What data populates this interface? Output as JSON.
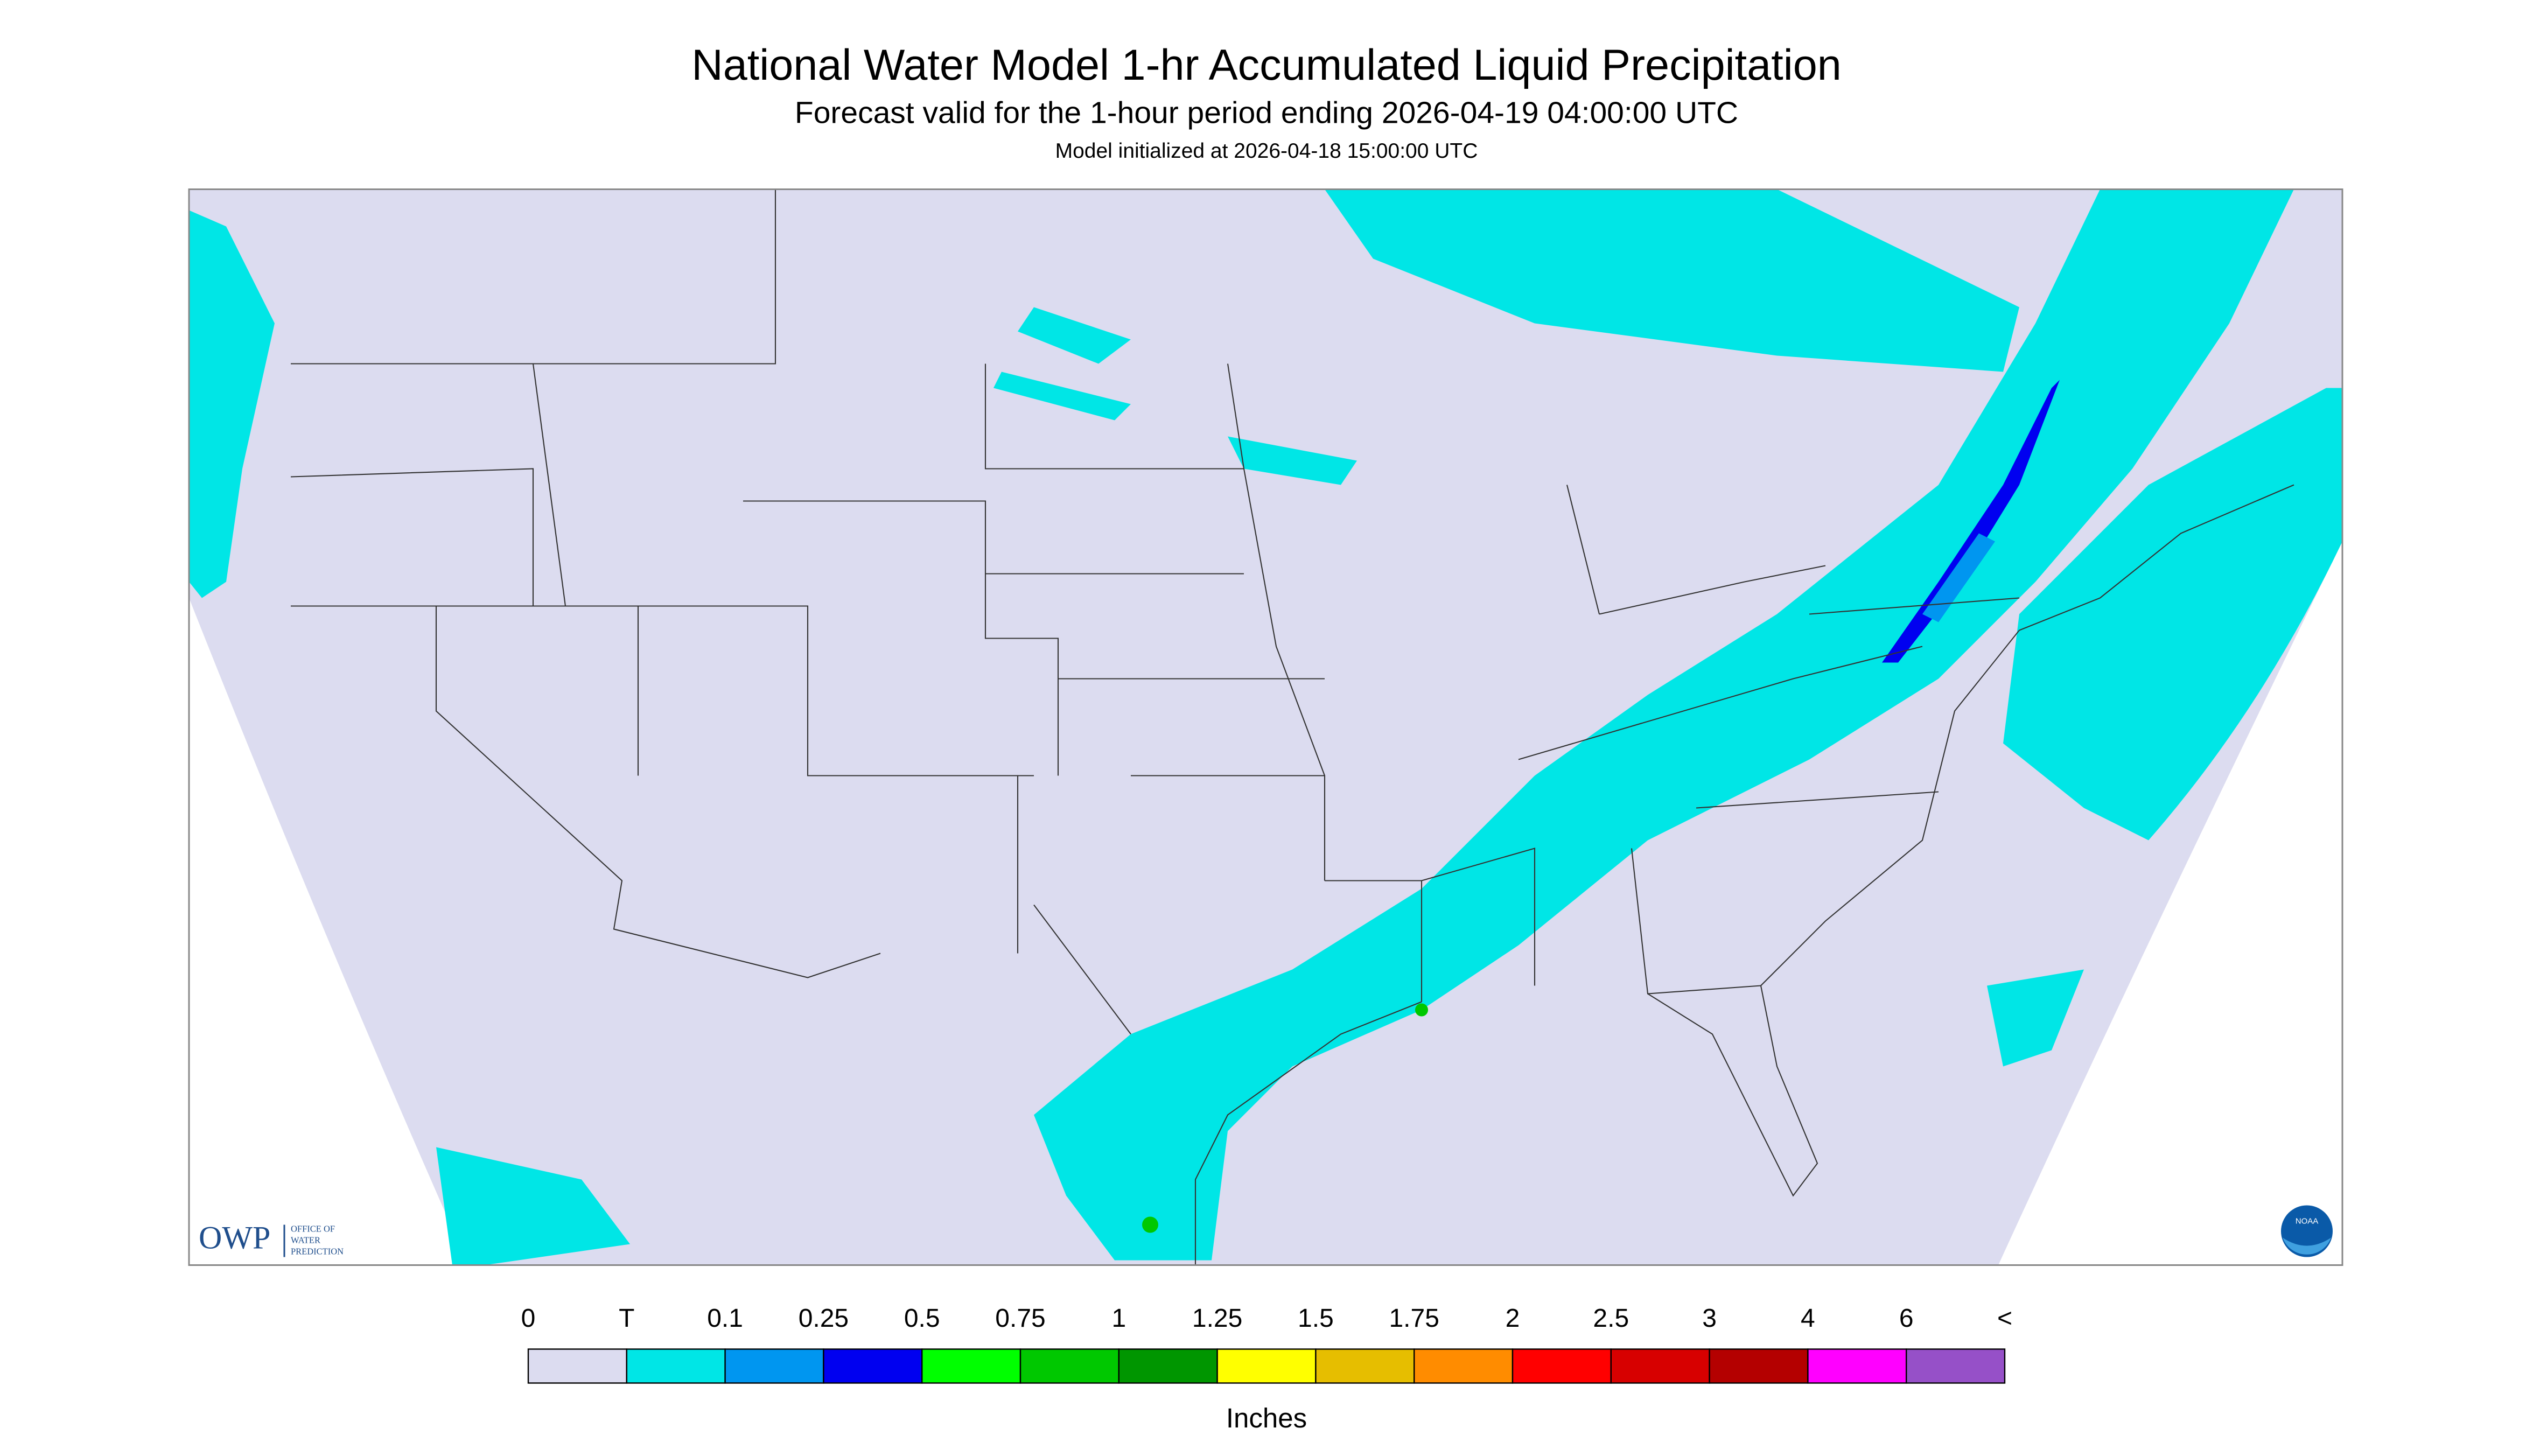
{
  "header": {
    "title": "National Water Model 1-hr Accumulated Liquid Precipitation",
    "subtitle": "Forecast valid for the 1-hour period ending 2026-04-19 04:00:00 UTC",
    "init": "Model initialized at 2026-04-18 15:00:00 UTC"
  },
  "logos": {
    "owp": "OWP",
    "owp_name": [
      "OFFICE OF",
      "WATER",
      "PREDICTION"
    ],
    "noaa": "NOAA"
  },
  "legend": {
    "labels": [
      "0",
      "T",
      "0.1",
      "0.25",
      "0.5",
      "0.75",
      "1",
      "1.25",
      "1.5",
      "1.75",
      "2",
      "2.5",
      "3",
      "4",
      "6",
      "<"
    ],
    "colors": [
      "#dcdcf0",
      "#00e6e6",
      "#0096f0",
      "#0000f0",
      "#00ff00",
      "#00c800",
      "#009600",
      "#ffff00",
      "#e6be00",
      "#ff8c00",
      "#ff0000",
      "#d70000",
      "#b40000",
      "#ff00ff",
      "#9650c8"
    ],
    "unit": "Inches"
  }
}
